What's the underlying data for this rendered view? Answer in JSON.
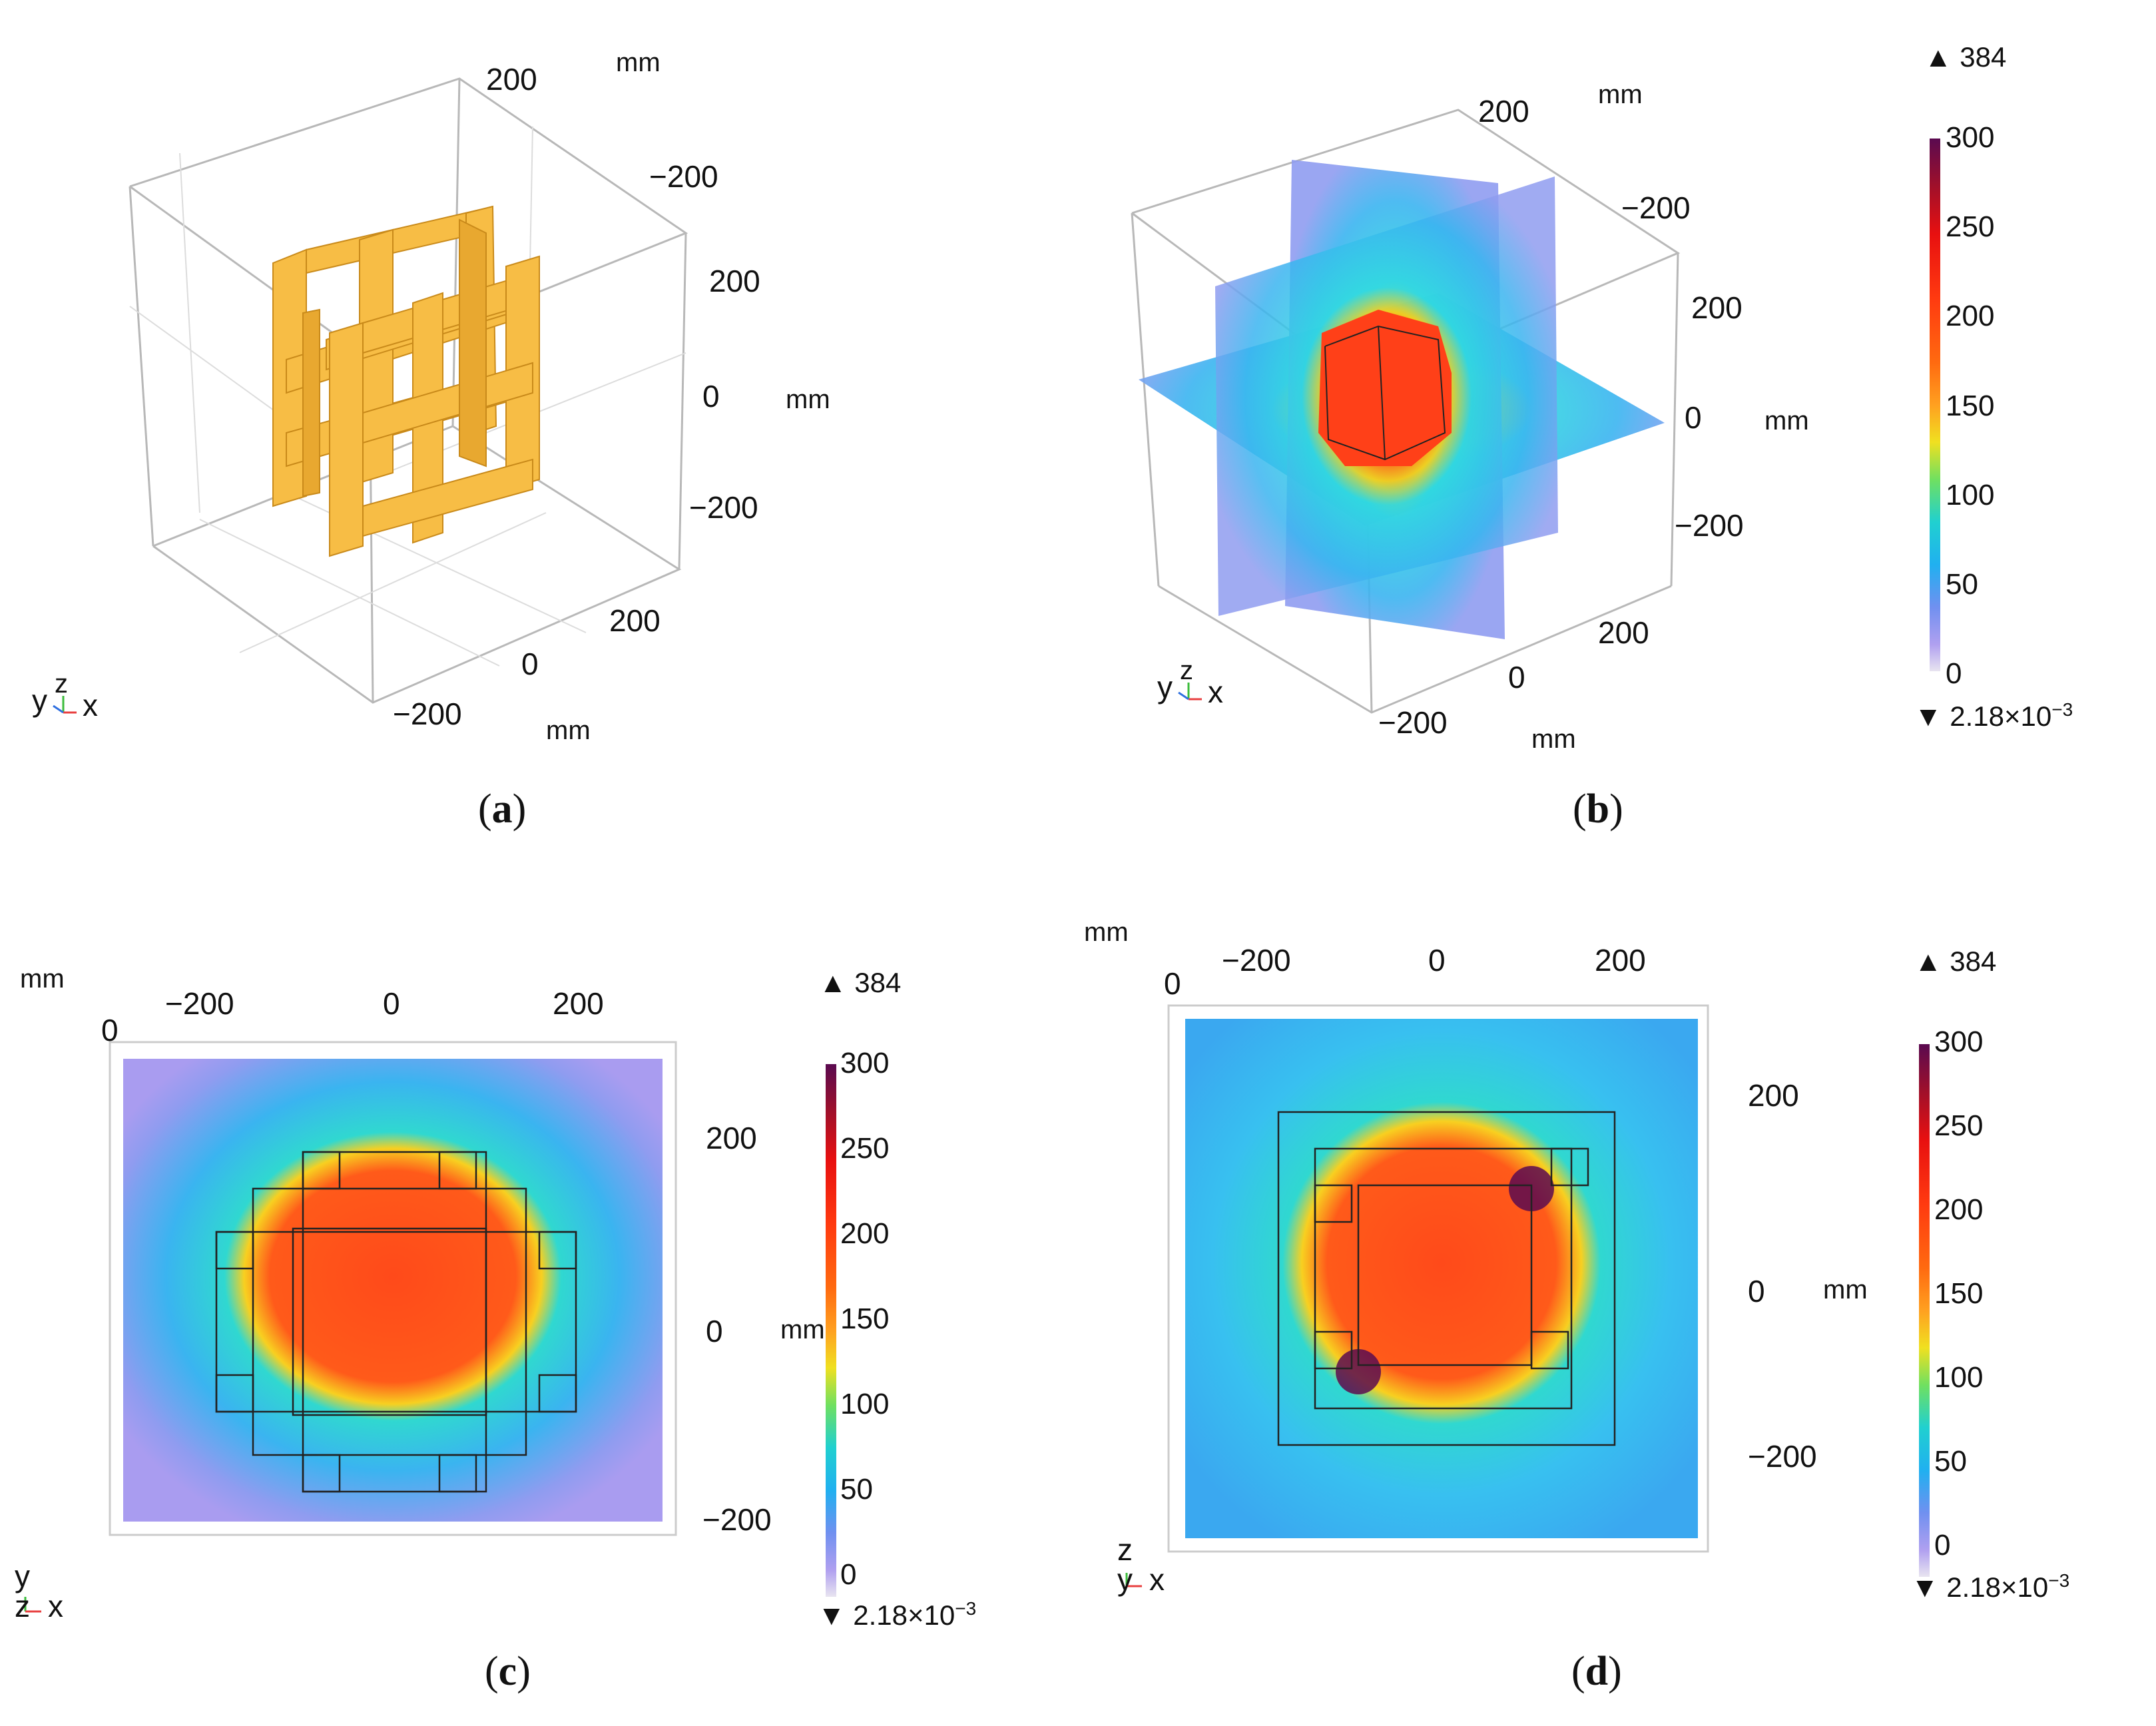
{
  "panels": {
    "a": {
      "caption": "a",
      "ticks_x": [
        "200",
        "0",
        "−200"
      ],
      "ticks_y": [
        "200",
        "−200"
      ],
      "ticks_z": [
        "200",
        "0",
        "−200"
      ],
      "unit_top": "mm",
      "unit_right": "mm",
      "unit_bottom": "mm",
      "triad": "yzx",
      "triad_y": "y",
      "triad_z": "z",
      "triad_x": "x"
    },
    "b": {
      "caption": "b",
      "ticks_x": [
        "200",
        "0",
        "−200"
      ],
      "ticks_y": [
        "200",
        "−200"
      ],
      "ticks_z": [
        "200",
        "0",
        "−200"
      ],
      "unit_top": "mm",
      "unit_right": "mm",
      "unit_bottom": "mm",
      "triad_y": "y",
      "triad_z": "z",
      "triad_x": "x"
    },
    "c": {
      "caption": "c",
      "unit_corner": "mm",
      "unit_right": "mm",
      "ticks_top": [
        "0",
        "−200",
        "0",
        "200"
      ],
      "ticks_right": [
        "200",
        "0",
        "−200"
      ],
      "triad_up": "y",
      "triad_out": "z",
      "triad_right": "x"
    },
    "d": {
      "caption": "d",
      "unit_corner": "mm",
      "unit_right": "mm",
      "ticks_top": [
        "0",
        "−200",
        "0",
        "200"
      ],
      "ticks_right": [
        "200",
        "0",
        "−200"
      ],
      "triad_up": "z",
      "triad_out": "y",
      "triad_right": "x"
    }
  },
  "colorbar": {
    "max_label": "384",
    "min_label_base": "2.18×10",
    "min_label_exp": "−3",
    "ticks": [
      "300",
      "250",
      "200",
      "150",
      "100",
      "50",
      "0"
    ]
  },
  "colors": {
    "geometry": "#f7bd45",
    "field_low": "#a99cf0",
    "field_mid": "#30c8f0",
    "field_high": "#ff4a1a",
    "box_line": "#bbbbbb"
  }
}
